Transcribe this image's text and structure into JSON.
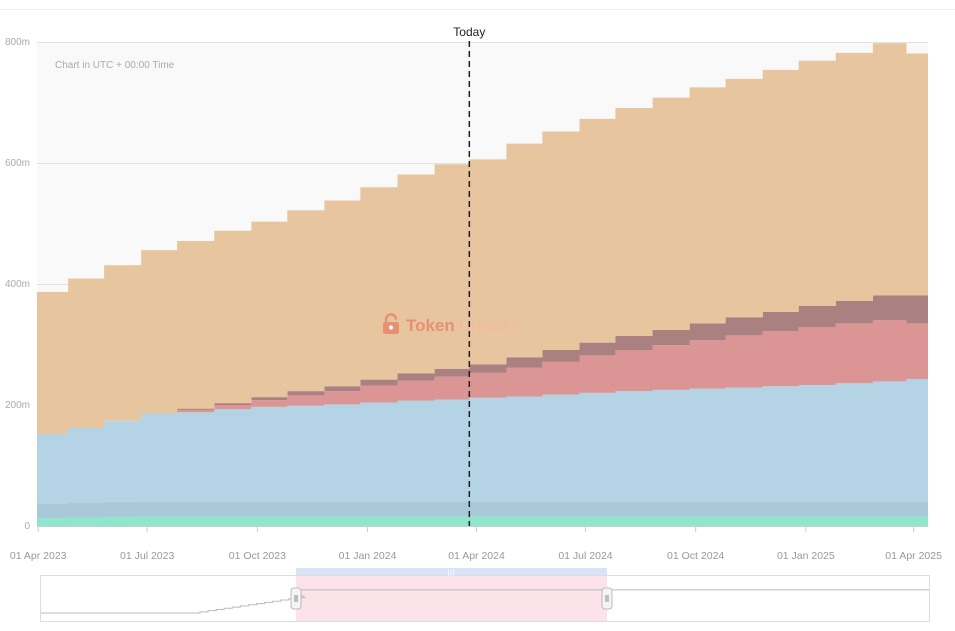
{
  "chart_data": {
    "type": "area",
    "step": true,
    "note": "Chart in UTC + 00:00 Time",
    "watermark": {
      "part1": "Token",
      "part2": "Unlocks."
    },
    "today": {
      "label": "Today",
      "x": "2024-03-26"
    },
    "y_ticks": [
      "0",
      "200m",
      "400m",
      "600m",
      "800m"
    ],
    "ylim": [
      0,
      800
    ],
    "xlim": [
      "2023-03-31",
      "2025-04-13"
    ],
    "x_ticks": [
      {
        "label": "01 Apr 2023",
        "x": "2023-04-01"
      },
      {
        "label": "01 Jul 2023",
        "x": "2023-07-01"
      },
      {
        "label": "01 Oct 2023",
        "x": "2023-10-01"
      },
      {
        "label": "01 Jan 2024",
        "x": "2024-01-01"
      },
      {
        "label": "01 Apr 2024",
        "x": "2024-04-01"
      },
      {
        "label": "01 Jul 2024",
        "x": "2024-07-01"
      },
      {
        "label": "01 Oct 2024",
        "x": "2024-10-01"
      },
      {
        "label": "01 Jan 2025",
        "x": "2025-01-01"
      },
      {
        "label": "01 Apr 2025",
        "x": "2025-04-01"
      }
    ],
    "x": [
      "2023-03-31",
      "2023-04-26",
      "2023-05-26",
      "2023-06-26",
      "2023-07-26",
      "2023-08-26",
      "2023-09-26",
      "2023-10-26",
      "2023-11-26",
      "2023-12-26",
      "2024-01-26",
      "2024-02-26",
      "2024-03-26",
      "2024-04-26",
      "2024-05-26",
      "2024-06-26",
      "2024-07-26",
      "2024-08-26",
      "2024-09-26",
      "2024-10-26",
      "2024-11-26",
      "2024-12-26",
      "2025-01-26",
      "2025-02-26",
      "2025-03-26",
      "2025-04-13"
    ],
    "series": [
      {
        "color": "#8ee6cc",
        "values": [
          13,
          14,
          15,
          16,
          16,
          16,
          16,
          16,
          16,
          16,
          16,
          16,
          16,
          16,
          16,
          16,
          16,
          16,
          16,
          16,
          16,
          16,
          16,
          16,
          16,
          16
        ]
      },
      {
        "color": "#a9c9d8",
        "values": [
          24,
          25,
          25,
          25,
          25,
          25,
          25,
          25,
          25,
          25,
          25,
          25,
          25,
          25,
          25,
          25,
          25,
          25,
          25,
          25,
          25,
          25,
          25,
          25,
          25,
          25
        ]
      },
      {
        "color": "#b4d3e5",
        "values": [
          115,
          123,
          134,
          145,
          147,
          152,
          156,
          158,
          160,
          163,
          166,
          168,
          171,
          173,
          176,
          179,
          182,
          184,
          186,
          188,
          190,
          192,
          195,
          198,
          202,
          202
        ]
      },
      {
        "color": "#dc9595",
        "values": [
          0,
          0,
          0,
          0,
          4,
          7,
          11,
          17,
          22,
          28,
          33,
          38,
          41,
          48,
          55,
          62,
          68,
          74,
          80,
          86,
          91,
          96,
          99,
          101,
          92,
          92
        ]
      },
      {
        "color": "#aa8080",
        "values": [
          0,
          0,
          0,
          0,
          2,
          3,
          5,
          7,
          8,
          10,
          12,
          13,
          14,
          17,
          19,
          21,
          23,
          25,
          28,
          30,
          32,
          35,
          37,
          41,
          46,
          46
        ]
      },
      {
        "color": "#e7c59f",
        "values": [
          235,
          247,
          257,
          270,
          277,
          285,
          290,
          299,
          307,
          318,
          329,
          338,
          339,
          353,
          361,
          370,
          377,
          384,
          390,
          394,
          400,
          405,
          410,
          417,
          400,
          400
        ]
      }
    ]
  },
  "navigator": {
    "note": ""
  }
}
